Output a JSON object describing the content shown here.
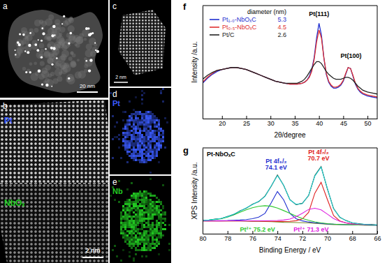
{
  "images": [
    {
      "label": "a",
      "scale_bar": "20 nm"
    },
    {
      "label": "b",
      "texts": [
        {
          "text": "Pt",
          "color": "#3a5bff"
        },
        {
          "text": "NbOₓ",
          "color": "#22cc22"
        }
      ],
      "scale_bar": "2 nm"
    },
    {
      "label": "c",
      "scale_bar": "2 nm"
    },
    {
      "label": "d",
      "element": "Pt",
      "color": "#3a5bff"
    },
    {
      "label": "e",
      "element": "Nb",
      "color": "#22cc22"
    }
  ],
  "chart_data": [
    {
      "type": "line",
      "label": "f",
      "x_label": "2θ/degree",
      "y_label": "Intensity /a.u.",
      "x": [
        16,
        17,
        18,
        19,
        20,
        21,
        22,
        23,
        24,
        25,
        26,
        27,
        28,
        29,
        30,
        31,
        32,
        33,
        34,
        35,
        35.5,
        36,
        36.5,
        37,
        37.5,
        38,
        38.5,
        39,
        39.5,
        40,
        40.5,
        41,
        41.5,
        42,
        42.5,
        43,
        43.5,
        44,
        44.5,
        45,
        45.5,
        46,
        46.5,
        47,
        47.5,
        48,
        48.5,
        49,
        49.5,
        50,
        51,
        52
      ],
      "series": [
        {
          "name": "Pt₁.₀-NbOₓC",
          "diameter": 5.3,
          "color": "#1f2fd0",
          "values": [
            36,
            41,
            45,
            48,
            50,
            51,
            52,
            52,
            51,
            50,
            48,
            46,
            44,
            42,
            40,
            38,
            37,
            36,
            35,
            35,
            35,
            35.5,
            36,
            37,
            39,
            43,
            50,
            62,
            82,
            97,
            85,
            62,
            45,
            37,
            33,
            31,
            31,
            32,
            34,
            38,
            45,
            52,
            51,
            43,
            35,
            30,
            27,
            25,
            24,
            23,
            22,
            21
          ]
        },
        {
          "name": "Pt₀.₅-NbOₓC",
          "diameter": 4.5,
          "color": "#e03030",
          "values": [
            37,
            42,
            46,
            49,
            50,
            51,
            52,
            52,
            51,
            50,
            48,
            46,
            44,
            42,
            40,
            38,
            37,
            36,
            35,
            35,
            35,
            35.5,
            36,
            37,
            39,
            42,
            48,
            60,
            78,
            90,
            82,
            62,
            46,
            38,
            34,
            32,
            32,
            33,
            35,
            39,
            46,
            52,
            51,
            44,
            36,
            31,
            28,
            26,
            25,
            24,
            23,
            22
          ]
        },
        {
          "name": "Pt/C",
          "diameter": 2.6,
          "color": "#222222",
          "values": [
            40,
            44,
            47,
            49,
            50,
            51,
            52,
            52,
            51,
            50,
            48,
            46,
            44,
            42,
            40,
            38,
            37,
            36,
            36,
            36,
            36,
            37,
            38,
            40,
            43,
            47,
            51,
            55,
            58,
            58,
            56,
            52,
            48,
            45,
            43,
            41,
            40,
            40,
            40,
            41,
            42,
            42,
            41,
            39,
            36,
            33,
            31,
            29,
            28,
            27,
            26,
            25
          ]
        }
      ],
      "xlim": [
        16,
        52
      ],
      "xticks": [
        20,
        25,
        30,
        35,
        40,
        45,
        50
      ],
      "ylim": [
        0,
        115
      ],
      "tick_labels": "x",
      "legend": "upper left",
      "legend_title": "diameter (nm)",
      "annotations": [
        {
          "text": "Pt(111)",
          "x": 40,
          "y": 104
        },
        {
          "text": "Pt(100)",
          "x": 46.6,
          "y": 62
        }
      ]
    },
    {
      "type": "line",
      "label": "g",
      "title": "Pt-NbOₓC",
      "x_label": "Binding Energy / eV",
      "y_label": "XPS Intensity /a.u.",
      "x": [
        80,
        79.5,
        79,
        78.5,
        78,
        77.5,
        77,
        76.5,
        76,
        75.5,
        75,
        74.5,
        74,
        73.5,
        73,
        72.5,
        72,
        71.5,
        71,
        70.5,
        70,
        69.5,
        69,
        68.5,
        68,
        67.5,
        67,
        66.5,
        66
      ],
      "series": [
        {
          "color": "#7a8a2a",
          "values": [
            13,
            13,
            13,
            13,
            13,
            13,
            13,
            12.8,
            12.6,
            12.4,
            12.2,
            12,
            11.6,
            11.2,
            11,
            10.8,
            10.6,
            10.3,
            9.8,
            9.2,
            8.6,
            8.2,
            8,
            7.8,
            7.7,
            7.6,
            7.5,
            7.5,
            7.4
          ]
        },
        {
          "color": "#1f2fd0",
          "values": [
            13.1,
            13.2,
            13.3,
            13.4,
            13.5,
            13.8,
            14.2,
            14.8,
            16,
            18,
            23,
            37,
            52,
            41,
            23,
            16,
            13,
            11.6,
            10.6,
            9.8,
            9,
            8.6,
            8.3,
            8,
            7.8,
            7.7,
            7.6,
            7.5,
            7.4
          ]
        },
        {
          "color": "#e02020",
          "values": [
            13,
            13,
            13,
            13,
            13,
            13,
            13,
            12.9,
            12.8,
            12.7,
            12.6,
            12.5,
            12.3,
            12.2,
            12.4,
            13.3,
            15.6,
            24.3,
            49.8,
            64.2,
            41.6,
            20.2,
            13,
            10.3,
            9.1,
            8.4,
            8,
            7.8,
            7.6
          ]
        },
        {
          "color": "#2ec82e",
          "values": [
            13.5,
            14,
            14.8,
            16,
            18,
            21,
            24.5,
            27.8,
            30.6,
            32.4,
            33.2,
            32.5,
            30.1,
            26.7,
            23,
            19.3,
            16.1,
            13.8,
            11.8,
            10.4,
            9.4,
            8.7,
            8.3,
            8,
            7.8,
            7.6,
            7.5,
            7.5,
            7.4
          ]
        },
        {
          "color": "#e020e0",
          "values": [
            13,
            13,
            13,
            13,
            13.1,
            13.1,
            13.2,
            13.1,
            13.1,
            13.1,
            13.2,
            13.4,
            13.6,
            14.2,
            15.5,
            18.8,
            23.1,
            28.3,
            29.8,
            27.7,
            22.1,
            16.2,
            12.5,
            10.3,
            9,
            8.3,
            7.9,
            7.7,
            7.5
          ]
        },
        {
          "color": "#1e3a1e",
          "values": [
            13.9,
            14.0,
            15.4,
            16.2,
            18.9,
            21.6,
            26.3,
            29.9,
            35.1,
            38.7,
            45.9,
            59.0,
            74.0,
            60.1,
            41.3,
            34.6,
            36.4,
            46.7,
            73.3,
            85.2,
            55.8,
            29.5,
            17.8,
            13.5,
            10.3,
            9.4,
            8.3,
            8.2,
            7.5
          ]
        },
        {
          "color": "#22d3d8",
          "values": [
            13.6,
            14.2,
            15.1,
            16.4,
            18.6,
            21.9,
            25.9,
            30.2,
            34.7,
            39,
            45.4,
            59.4,
            73.2,
            60.5,
            40.9,
            35,
            36,
            47.1,
            72.6,
            84.5,
            56.3,
            29.1,
            18.1,
            13.2,
            10.6,
            9.2,
            8.5,
            8,
            7.7
          ]
        }
      ],
      "xlim": [
        80,
        66
      ],
      "xticks": [
        80,
        78,
        76,
        74,
        72,
        70,
        68,
        66
      ],
      "ylim": [
        -4,
        110
      ],
      "tick_labels": "x",
      "annotations": [
        {
          "text": "Pt 4f₅/₂",
          "x": 74.1,
          "y": 90,
          "color": "#1f2fd0"
        },
        {
          "text": "74.1 eV",
          "x": 74.1,
          "y": 81,
          "color": "#1f2fd0"
        },
        {
          "text": "Pt 4f₇/₂",
          "x": 70.7,
          "y": 102,
          "color": "#e02020"
        },
        {
          "text": "70.7 eV",
          "x": 70.7,
          "y": 93,
          "color": "#e02020"
        },
        {
          "text": "Pt²⁺ 75.2 eV",
          "x": 75.6,
          "y": -1,
          "color": "#2ec82e"
        },
        {
          "text": "Pt²⁺ 71.3 eV",
          "x": 71.3,
          "y": -1,
          "color": "#e020e0"
        }
      ]
    }
  ]
}
